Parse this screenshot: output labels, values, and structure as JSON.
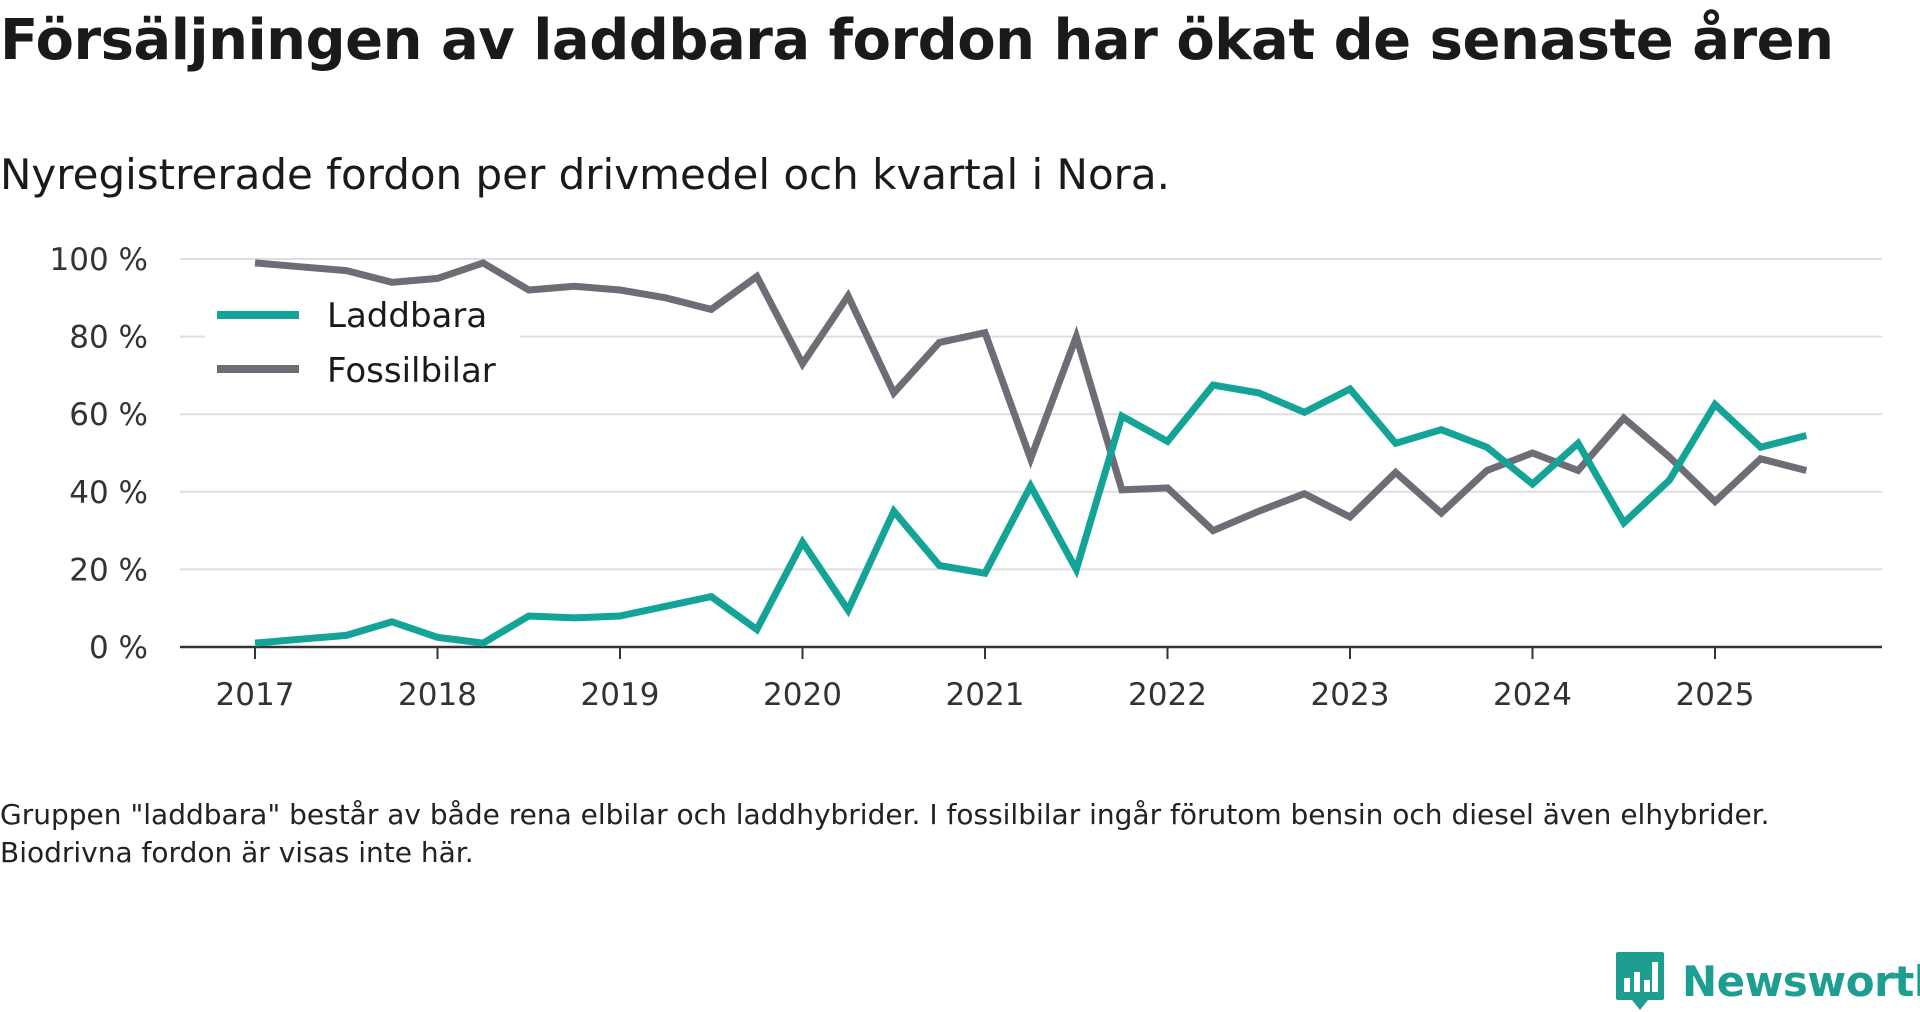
{
  "title": "Försäljningen av laddbara fordon har ökat de senaste åren",
  "subtitle": "Nyregistrerade fordon per drivmedel och kvartal i Nora.",
  "note": "Gruppen \"laddbara\" består av både rena elbilar och laddhybrider. I fossilbilar ingår förutom bensin och diesel även elhybrider. Biodrivna fordon är visas inte här.",
  "brand": "Newsworthy",
  "colors": {
    "laddbara": "#14a397",
    "fossil": "#6e6d75",
    "grid": "#dedede",
    "axis": "#333333",
    "brand": "#1e9e90"
  },
  "chart_data": {
    "type": "line",
    "title": "Försäljningen av laddbara fordon har ökat de senaste åren",
    "xlabel": "",
    "ylabel": "",
    "ylim": [
      0,
      100
    ],
    "ytick_values": [
      0,
      20,
      40,
      60,
      80,
      100
    ],
    "ytick_labels": [
      "0 %",
      "20 %",
      "40 %",
      "60 %",
      "80 %",
      "100 %"
    ],
    "xtick_labels": [
      "2017",
      "2018",
      "2019",
      "2020",
      "2021",
      "2022",
      "2023",
      "2024",
      "2025"
    ],
    "x_start_year": 2017,
    "x_end_year": 2025.75,
    "legend_position": "top-left",
    "grid": true,
    "x": [
      "2017 Q1",
      "2017 Q2",
      "2017 Q3",
      "2017 Q4",
      "2018 Q1",
      "2018 Q2",
      "2018 Q3",
      "2018 Q4",
      "2019 Q1",
      "2019 Q2",
      "2019 Q3",
      "2019 Q4",
      "2020 Q1",
      "2020 Q2",
      "2020 Q3",
      "2020 Q4",
      "2021 Q1",
      "2021 Q2",
      "2021 Q3",
      "2021 Q4",
      "2022 Q1",
      "2022 Q2",
      "2022 Q3",
      "2022 Q4",
      "2023 Q1",
      "2023 Q2",
      "2023 Q3",
      "2023 Q4",
      "2024 Q1",
      "2024 Q2",
      "2024 Q3",
      "2024 Q4",
      "2025 Q1",
      "2025 Q2",
      "2025 Q3"
    ],
    "series": [
      {
        "name": "Laddbara",
        "key": "laddbara",
        "values": [
          1,
          2,
          3,
          6.5,
          2.5,
          1,
          8,
          7.5,
          8,
          10.5,
          13,
          4.5,
          27,
          9.5,
          35,
          21,
          19,
          41.5,
          20,
          59.5,
          53,
          67.5,
          65.5,
          60.5,
          66.5,
          52.5,
          56,
          51.5,
          42,
          52.5,
          32,
          43,
          62.5,
          51.5,
          54.5
        ]
      },
      {
        "name": "Fossilbilar",
        "key": "fossil",
        "values": [
          99,
          98,
          97,
          94,
          95,
          99,
          92,
          93,
          92,
          90,
          87,
          95.5,
          73,
          90.5,
          65.5,
          78.5,
          81,
          48.5,
          80,
          40.5,
          41,
          30,
          35,
          39.5,
          33.5,
          45,
          34.5,
          45.5,
          50,
          45.5,
          59,
          49,
          37.5,
          48.5,
          45.5
        ]
      }
    ]
  }
}
